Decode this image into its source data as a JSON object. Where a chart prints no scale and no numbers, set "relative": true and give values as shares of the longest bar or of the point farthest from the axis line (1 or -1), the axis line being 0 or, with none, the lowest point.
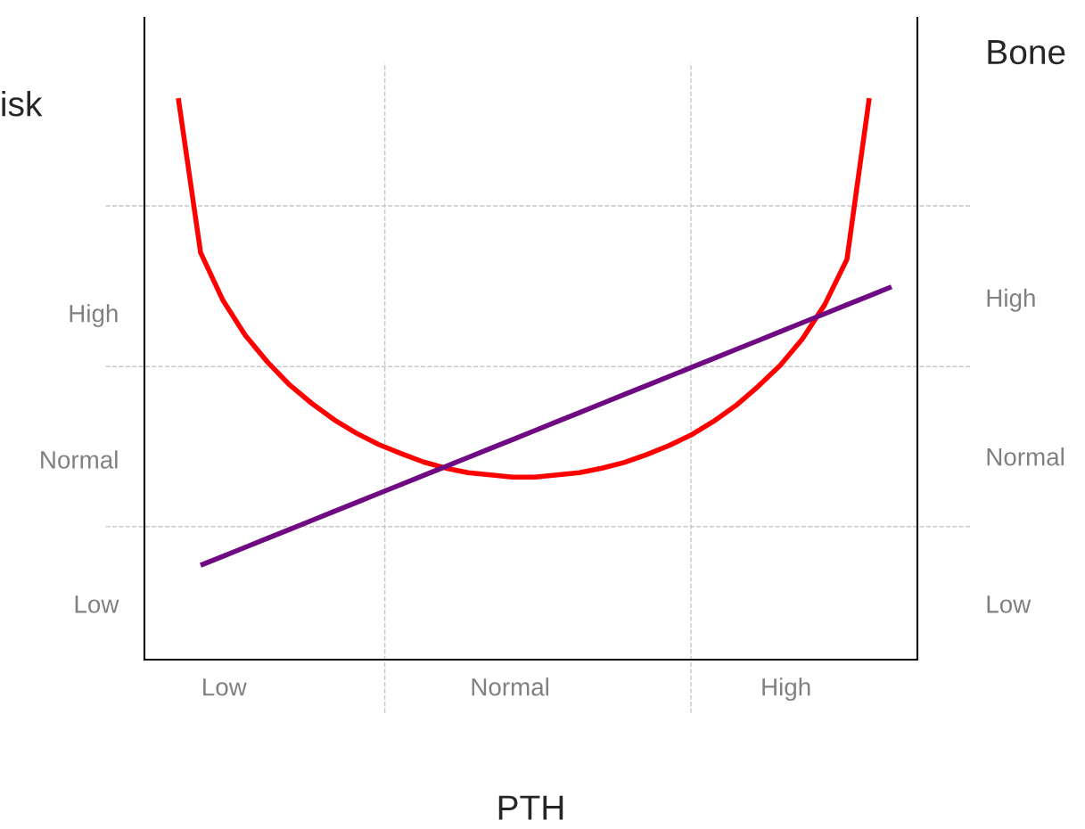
{
  "chart_data": {
    "type": "line",
    "relative": true,
    "xlabel": "PTH",
    "ylabel": "isk",
    "y2label": "Bone",
    "categories": [
      null,
      null,
      null,
      null,
      null,
      null,
      null,
      null,
      null,
      null,
      null,
      null,
      null,
      null,
      null,
      null,
      null,
      null,
      null,
      null,
      null,
      null,
      null,
      null,
      null,
      null,
      null,
      null,
      null,
      null,
      null,
      null,
      null
    ],
    "series": [
      {
        "color": "#ff0000",
        "values": [
          1.0,
          0.725,
          0.64,
          0.578,
          0.53,
          0.489,
          0.456,
          0.427,
          0.403,
          0.383,
          0.367,
          0.352,
          0.341,
          0.333,
          0.329,
          0.325,
          0.325,
          0.329,
          0.333,
          0.341,
          0.351,
          0.365,
          0.381,
          0.4,
          0.424,
          0.452,
          0.486,
          0.524,
          0.571,
          0.632,
          0.713,
          1.0,
          null
        ]
      },
      {
        "color": "#6f0a82",
        "values": [
          null,
          0.168,
          0.184,
          0.2,
          0.216,
          0.232,
          0.248,
          0.264,
          0.28,
          0.296,
          0.312,
          0.328,
          0.344,
          0.36,
          0.376,
          0.392,
          0.408,
          0.424,
          0.44,
          0.456,
          0.472,
          0.488,
          0.504,
          0.52,
          0.536,
          0.552,
          0.568,
          0.584,
          0.6,
          0.616,
          0.632,
          0.648,
          0.664
        ]
      }
    ],
    "annotations": [
      "Low",
      "Normal",
      "High",
      "Low",
      "Normal",
      "High",
      "Low",
      "Normal",
      "High"
    ],
    "ref_lines": [
      {
        "axis": "y",
        "value": 0.237,
        "color": "#c8c8c8",
        "line_style": "dashed"
      },
      {
        "axis": "y",
        "value": 0.522,
        "color": "#c8c8c8",
        "line_style": "dashed"
      },
      {
        "axis": "y",
        "value": 0.808,
        "color": "#c8c8c8",
        "line_style": "dashed"
      }
    ],
    "legend": false
  }
}
